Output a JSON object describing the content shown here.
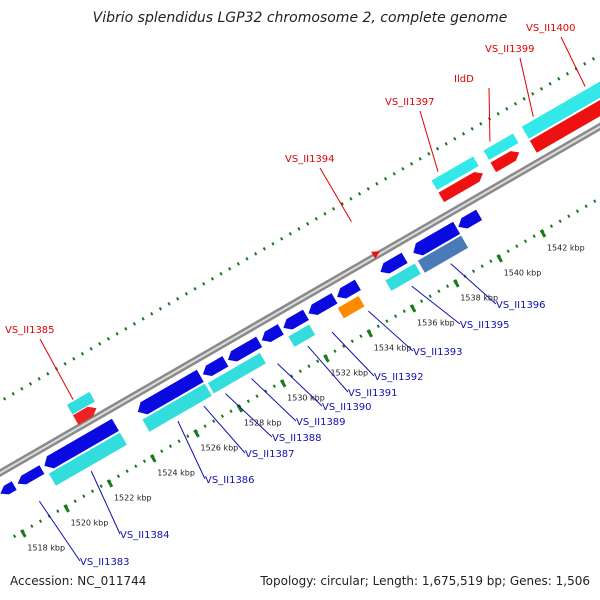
{
  "title": "Vibrio splendidus LGP32 chromosome 2, complete genome",
  "footer": {
    "accession": "Accession: NC_011744",
    "summary": "Topology: circular; Length: 1,675,519 bp; Genes: 1,506"
  },
  "colors": {
    "backbone_outer": "#8a8a8a",
    "backbone_inner": "#dddddd",
    "tick": "#1a7a1a",
    "label_red": "#e00000",
    "label_blue": "#1010b0",
    "cds_blue": "#0a0ae0",
    "rna_cyan": "#33dddd",
    "cds_red": "#ee1111",
    "rna_red": "#ee2222",
    "cyan_top": "#33e8e8",
    "steel": "#4a7ab8",
    "orange": "#ff8a00"
  },
  "map": {
    "ticks": [
      {
        "label": "1518 kbp"
      },
      {
        "label": "1520 kbp"
      },
      {
        "label": "1522 kbp"
      },
      {
        "label": "1524 kbp"
      },
      {
        "label": "1526 kbp"
      },
      {
        "label": "1528 kbp"
      },
      {
        "label": "1530 kbp"
      },
      {
        "label": "1532 kbp"
      },
      {
        "label": "1534 kbp"
      },
      {
        "label": "1536 kbp"
      },
      {
        "label": "1538 kbp"
      },
      {
        "label": "1540 kbp"
      },
      {
        "label": "1542 kbp"
      }
    ],
    "labels_forward": [
      {
        "name": "VS_II1385"
      },
      {
        "name": "VS_II1394"
      },
      {
        "name": "VS_II1397"
      },
      {
        "name": "IldD"
      },
      {
        "name": "VS_II1399"
      },
      {
        "name": "VS_II1400"
      }
    ],
    "labels_reverse": [
      {
        "name": "VS_II1383"
      },
      {
        "name": "VS_II1384"
      },
      {
        "name": "VS_II1386"
      },
      {
        "name": "VS_II1387"
      },
      {
        "name": "VS_II1388"
      },
      {
        "name": "VS_II1389"
      },
      {
        "name": "VS_II1390"
      },
      {
        "name": "VS_II1391"
      },
      {
        "name": "VS_II1392"
      },
      {
        "name": "VS_II1393"
      },
      {
        "name": "VS_II1395"
      },
      {
        "name": "VS_II1396"
      }
    ]
  }
}
